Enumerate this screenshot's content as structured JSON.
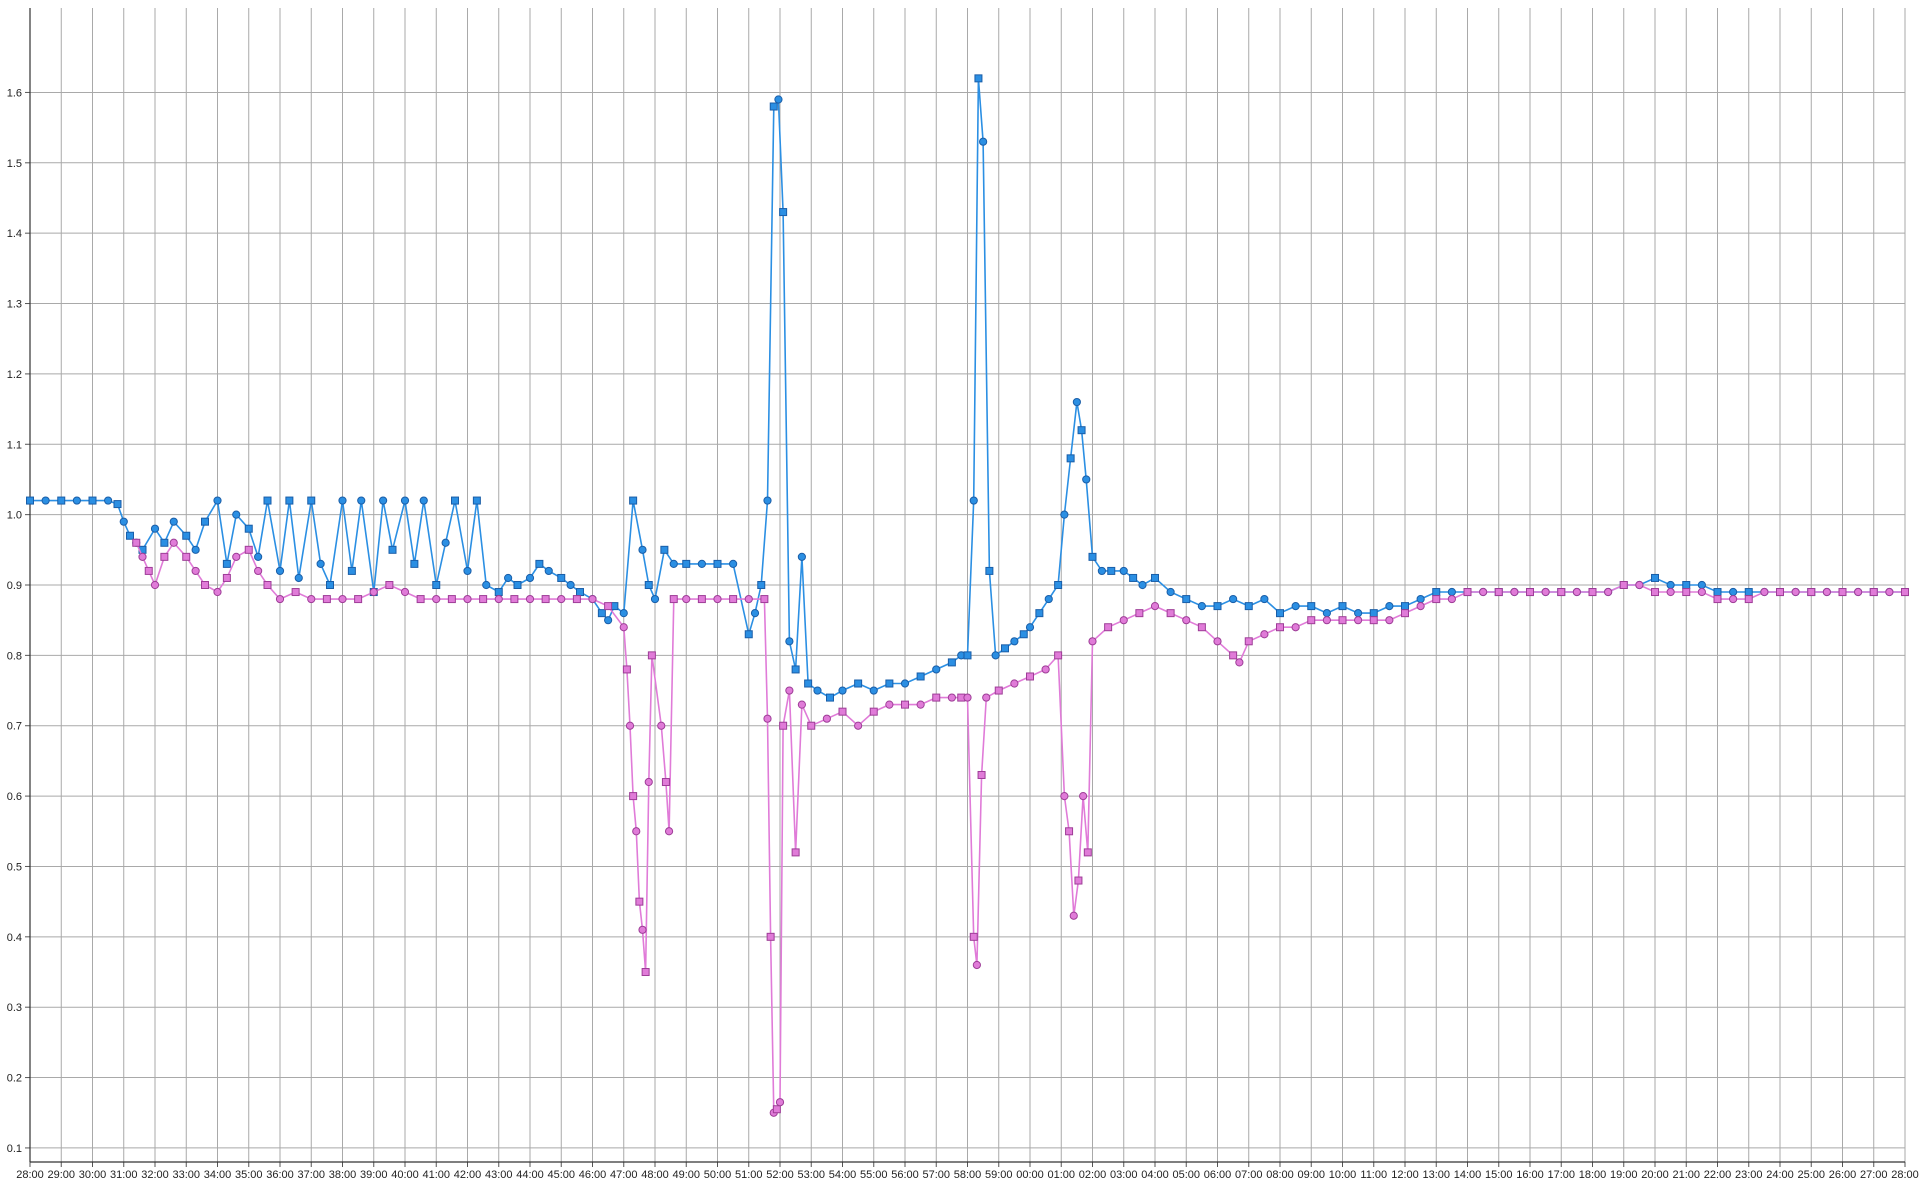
{
  "chart_data": {
    "type": "line",
    "title": "",
    "xlabel": "",
    "ylabel": "",
    "x_ticks": [
      "28:00",
      "29:00",
      "30:00",
      "31:00",
      "32:00",
      "33:00",
      "34:00",
      "35:00",
      "36:00",
      "37:00",
      "38:00",
      "39:00",
      "40:00",
      "41:00",
      "42:00",
      "43:00",
      "44:00",
      "45:00",
      "46:00",
      "47:00",
      "48:00",
      "49:00",
      "50:00",
      "51:00",
      "52:00",
      "53:00",
      "54:00",
      "55:00",
      "56:00",
      "57:00",
      "58:00",
      "59:00",
      "00:00",
      "01:00",
      "02:00",
      "03:00",
      "04:00",
      "05:00",
      "06:00",
      "07:00",
      "08:00",
      "09:00",
      "10:00",
      "11:00",
      "12:00",
      "13:00",
      "14:00",
      "15:00",
      "16:00",
      "17:00",
      "18:00",
      "19:00",
      "20:00",
      "21:00",
      "22:00",
      "23:00",
      "24:00",
      "25:00",
      "26:00",
      "27:00",
      "28:00"
    ],
    "y_ticks": [
      "0.1",
      "0.2",
      "0.3",
      "0.4",
      "0.5",
      "0.6",
      "0.7",
      "0.8",
      "0.9",
      "1.0",
      "1.1",
      "1.2",
      "1.3",
      "1.4",
      "1.5",
      "1.6"
    ],
    "ylim": [
      0.08,
      1.72
    ],
    "grid": true,
    "legend": "none",
    "series": [
      {
        "color": "#2b8fe3",
        "edge_color": "#1a5ea8",
        "marker": "circle/square",
        "points": [
          [
            0,
            1.02
          ],
          [
            0.5,
            1.02
          ],
          [
            1,
            1.02
          ],
          [
            1.5,
            1.02
          ],
          [
            2,
            1.02
          ],
          [
            2.5,
            1.02
          ],
          [
            2.8,
            1.015
          ],
          [
            3,
            0.99
          ],
          [
            3.2,
            0.97
          ],
          [
            3.4,
            0.96
          ],
          [
            3.6,
            0.95
          ],
          [
            4,
            0.98
          ],
          [
            4.3,
            0.96
          ],
          [
            4.6,
            0.99
          ],
          [
            5,
            0.97
          ],
          [
            5.3,
            0.95
          ],
          [
            5.6,
            0.99
          ],
          [
            6,
            1.02
          ],
          [
            6.3,
            0.93
          ],
          [
            6.6,
            1.0
          ],
          [
            7,
            0.98
          ],
          [
            7.3,
            0.94
          ],
          [
            7.6,
            1.02
          ],
          [
            8,
            0.92
          ],
          [
            8.3,
            1.02
          ],
          [
            8.6,
            0.91
          ],
          [
            9,
            1.02
          ],
          [
            9.3,
            0.93
          ],
          [
            9.6,
            0.9
          ],
          [
            10,
            1.02
          ],
          [
            10.3,
            0.92
          ],
          [
            10.6,
            1.02
          ],
          [
            11,
            0.89
          ],
          [
            11.3,
            1.02
          ],
          [
            11.6,
            0.95
          ],
          [
            12,
            1.02
          ],
          [
            12.3,
            0.93
          ],
          [
            12.6,
            1.02
          ],
          [
            13,
            0.9
          ],
          [
            13.3,
            0.96
          ],
          [
            13.6,
            1.02
          ],
          [
            14,
            0.92
          ],
          [
            14.3,
            1.02
          ],
          [
            14.6,
            0.9
          ],
          [
            15,
            0.89
          ],
          [
            15.3,
            0.91
          ],
          [
            15.6,
            0.9
          ],
          [
            16,
            0.91
          ],
          [
            16.3,
            0.93
          ],
          [
            16.6,
            0.92
          ],
          [
            17,
            0.91
          ],
          [
            17.3,
            0.9
          ],
          [
            17.6,
            0.89
          ],
          [
            18,
            0.88
          ],
          [
            18.3,
            0.86
          ],
          [
            18.5,
            0.85
          ],
          [
            18.7,
            0.87
          ],
          [
            19,
            0.86
          ],
          [
            19.3,
            1.02
          ],
          [
            19.6,
            0.95
          ],
          [
            19.8,
            0.9
          ],
          [
            20,
            0.88
          ],
          [
            20.3,
            0.95
          ],
          [
            20.6,
            0.93
          ],
          [
            21,
            0.93
          ],
          [
            21.5,
            0.93
          ],
          [
            22,
            0.93
          ],
          [
            22.5,
            0.93
          ],
          [
            23,
            0.83
          ],
          [
            23.2,
            0.86
          ],
          [
            23.4,
            0.9
          ],
          [
            23.6,
            1.02
          ],
          [
            23.8,
            1.58
          ],
          [
            23.95,
            1.59
          ],
          [
            24.1,
            1.43
          ],
          [
            24.3,
            0.82
          ],
          [
            24.5,
            0.78
          ],
          [
            24.7,
            0.94
          ],
          [
            24.9,
            0.76
          ],
          [
            25.2,
            0.75
          ],
          [
            25.6,
            0.74
          ],
          [
            26,
            0.75
          ],
          [
            26.5,
            0.76
          ],
          [
            27,
            0.75
          ],
          [
            27.5,
            0.76
          ],
          [
            28,
            0.76
          ],
          [
            28.5,
            0.77
          ],
          [
            29,
            0.78
          ],
          [
            29.5,
            0.79
          ],
          [
            29.8,
            0.8
          ],
          [
            30,
            0.8
          ],
          [
            30.2,
            1.02
          ],
          [
            30.35,
            1.62
          ],
          [
            30.5,
            1.53
          ],
          [
            30.7,
            0.92
          ],
          [
            30.9,
            0.8
          ],
          [
            31.2,
            0.81
          ],
          [
            31.5,
            0.82
          ],
          [
            31.8,
            0.83
          ],
          [
            32,
            0.84
          ],
          [
            32.3,
            0.86
          ],
          [
            32.6,
            0.88
          ],
          [
            32.9,
            0.9
          ],
          [
            33.1,
            1.0
          ],
          [
            33.3,
            1.08
          ],
          [
            33.5,
            1.16
          ],
          [
            33.65,
            1.12
          ],
          [
            33.8,
            1.05
          ],
          [
            34,
            0.94
          ],
          [
            34.3,
            0.92
          ],
          [
            34.6,
            0.92
          ],
          [
            35,
            0.92
          ],
          [
            35.3,
            0.91
          ],
          [
            35.6,
            0.9
          ],
          [
            36,
            0.91
          ],
          [
            36.5,
            0.89
          ],
          [
            37,
            0.88
          ],
          [
            37.5,
            0.87
          ],
          [
            38,
            0.87
          ],
          [
            38.5,
            0.88
          ],
          [
            39,
            0.87
          ],
          [
            39.5,
            0.88
          ],
          [
            40,
            0.86
          ],
          [
            40.5,
            0.87
          ],
          [
            41,
            0.87
          ],
          [
            41.5,
            0.86
          ],
          [
            42,
            0.87
          ],
          [
            42.5,
            0.86
          ],
          [
            43,
            0.86
          ],
          [
            43.5,
            0.87
          ],
          [
            44,
            0.87
          ],
          [
            44.5,
            0.88
          ],
          [
            45,
            0.89
          ],
          [
            45.5,
            0.89
          ],
          [
            46,
            0.89
          ],
          [
            46.5,
            0.89
          ],
          [
            47,
            0.89
          ],
          [
            47.5,
            0.89
          ],
          [
            48,
            0.89
          ],
          [
            48.5,
            0.89
          ],
          [
            49,
            0.89
          ],
          [
            49.5,
            0.89
          ],
          [
            50,
            0.89
          ],
          [
            50.5,
            0.89
          ],
          [
            51,
            0.9
          ],
          [
            51.5,
            0.9
          ],
          [
            52,
            0.91
          ],
          [
            52.5,
            0.9
          ],
          [
            53,
            0.9
          ],
          [
            53.5,
            0.9
          ],
          [
            54,
            0.89
          ],
          [
            54.5,
            0.89
          ],
          [
            55,
            0.89
          ],
          [
            55.5,
            0.89
          ],
          [
            56,
            0.89
          ],
          [
            56.5,
            0.89
          ],
          [
            57,
            0.89
          ],
          [
            57.5,
            0.89
          ],
          [
            58,
            0.89
          ],
          [
            58.5,
            0.89
          ],
          [
            59,
            0.89
          ],
          [
            59.5,
            0.89
          ],
          [
            60,
            0.89
          ]
        ]
      },
      {
        "color": "#e07bd8",
        "edge_color": "#9e3d97",
        "marker": "circle/square",
        "points": [
          [
            3.4,
            0.96
          ],
          [
            3.6,
            0.94
          ],
          [
            3.8,
            0.92
          ],
          [
            4,
            0.9
          ],
          [
            4.3,
            0.94
          ],
          [
            4.6,
            0.96
          ],
          [
            5,
            0.94
          ],
          [
            5.3,
            0.92
          ],
          [
            5.6,
            0.9
          ],
          [
            6,
            0.89
          ],
          [
            6.3,
            0.91
          ],
          [
            6.6,
            0.94
          ],
          [
            7,
            0.95
          ],
          [
            7.3,
            0.92
          ],
          [
            7.6,
            0.9
          ],
          [
            8,
            0.88
          ],
          [
            8.5,
            0.89
          ],
          [
            9,
            0.88
          ],
          [
            9.5,
            0.88
          ],
          [
            10,
            0.88
          ],
          [
            10.5,
            0.88
          ],
          [
            11,
            0.89
          ],
          [
            11.5,
            0.9
          ],
          [
            12,
            0.89
          ],
          [
            12.5,
            0.88
          ],
          [
            13,
            0.88
          ],
          [
            13.5,
            0.88
          ],
          [
            14,
            0.88
          ],
          [
            14.5,
            0.88
          ],
          [
            15,
            0.88
          ],
          [
            15.5,
            0.88
          ],
          [
            16,
            0.88
          ],
          [
            16.5,
            0.88
          ],
          [
            17,
            0.88
          ],
          [
            17.5,
            0.88
          ],
          [
            18,
            0.88
          ],
          [
            18.5,
            0.87
          ],
          [
            19,
            0.84
          ],
          [
            19.1,
            0.78
          ],
          [
            19.2,
            0.7
          ],
          [
            19.3,
            0.6
          ],
          [
            19.4,
            0.55
          ],
          [
            19.5,
            0.45
          ],
          [
            19.6,
            0.41
          ],
          [
            19.7,
            0.35
          ],
          [
            19.8,
            0.62
          ],
          [
            19.9,
            0.8
          ],
          [
            20.2,
            0.7
          ],
          [
            20.35,
            0.62
          ],
          [
            20.45,
            0.55
          ],
          [
            20.6,
            0.88
          ],
          [
            21,
            0.88
          ],
          [
            21.5,
            0.88
          ],
          [
            22,
            0.88
          ],
          [
            22.5,
            0.88
          ],
          [
            23,
            0.88
          ],
          [
            23.5,
            0.88
          ],
          [
            23.6,
            0.71
          ],
          [
            23.7,
            0.4
          ],
          [
            23.8,
            0.15
          ],
          [
            23.9,
            0.155
          ],
          [
            24.0,
            0.165
          ],
          [
            24.1,
            0.7
          ],
          [
            24.3,
            0.75
          ],
          [
            24.5,
            0.52
          ],
          [
            24.7,
            0.73
          ],
          [
            25,
            0.7
          ],
          [
            25.5,
            0.71
          ],
          [
            26,
            0.72
          ],
          [
            26.5,
            0.7
          ],
          [
            27,
            0.72
          ],
          [
            27.5,
            0.73
          ],
          [
            28,
            0.73
          ],
          [
            28.5,
            0.73
          ],
          [
            29,
            0.74
          ],
          [
            29.5,
            0.74
          ],
          [
            29.8,
            0.74
          ],
          [
            30,
            0.74
          ],
          [
            30.2,
            0.4
          ],
          [
            30.3,
            0.36
          ],
          [
            30.45,
            0.63
          ],
          [
            30.6,
            0.74
          ],
          [
            31,
            0.75
          ],
          [
            31.5,
            0.76
          ],
          [
            32,
            0.77
          ],
          [
            32.5,
            0.78
          ],
          [
            32.9,
            0.8
          ],
          [
            33.1,
            0.6
          ],
          [
            33.25,
            0.55
          ],
          [
            33.4,
            0.43
          ],
          [
            33.55,
            0.48
          ],
          [
            33.7,
            0.6
          ],
          [
            33.85,
            0.52
          ],
          [
            34,
            0.82
          ],
          [
            34.5,
            0.84
          ],
          [
            35,
            0.85
          ],
          [
            35.5,
            0.86
          ],
          [
            36,
            0.87
          ],
          [
            36.5,
            0.86
          ],
          [
            37,
            0.85
          ],
          [
            37.5,
            0.84
          ],
          [
            38,
            0.82
          ],
          [
            38.5,
            0.8
          ],
          [
            38.7,
            0.79
          ],
          [
            39,
            0.82
          ],
          [
            39.5,
            0.83
          ],
          [
            40,
            0.84
          ],
          [
            40.5,
            0.84
          ],
          [
            41,
            0.85
          ],
          [
            41.5,
            0.85
          ],
          [
            42,
            0.85
          ],
          [
            42.5,
            0.85
          ],
          [
            43,
            0.85
          ],
          [
            43.5,
            0.85
          ],
          [
            44,
            0.86
          ],
          [
            44.5,
            0.87
          ],
          [
            45,
            0.88
          ],
          [
            45.5,
            0.88
          ],
          [
            46,
            0.89
          ],
          [
            46.5,
            0.89
          ],
          [
            47,
            0.89
          ],
          [
            47.5,
            0.89
          ],
          [
            48,
            0.89
          ],
          [
            48.5,
            0.89
          ],
          [
            49,
            0.89
          ],
          [
            49.5,
            0.89
          ],
          [
            50,
            0.89
          ],
          [
            50.5,
            0.89
          ],
          [
            51,
            0.9
          ],
          [
            51.5,
            0.9
          ],
          [
            52,
            0.89
          ],
          [
            52.5,
            0.89
          ],
          [
            53,
            0.89
          ],
          [
            53.5,
            0.89
          ],
          [
            54,
            0.88
          ],
          [
            54.5,
            0.88
          ],
          [
            55,
            0.88
          ],
          [
            55.5,
            0.89
          ],
          [
            56,
            0.89
          ],
          [
            56.5,
            0.89
          ],
          [
            57,
            0.89
          ],
          [
            57.5,
            0.89
          ],
          [
            58,
            0.89
          ],
          [
            58.5,
            0.89
          ],
          [
            59,
            0.89
          ],
          [
            59.5,
            0.89
          ],
          [
            60,
            0.89
          ]
        ]
      }
    ]
  }
}
